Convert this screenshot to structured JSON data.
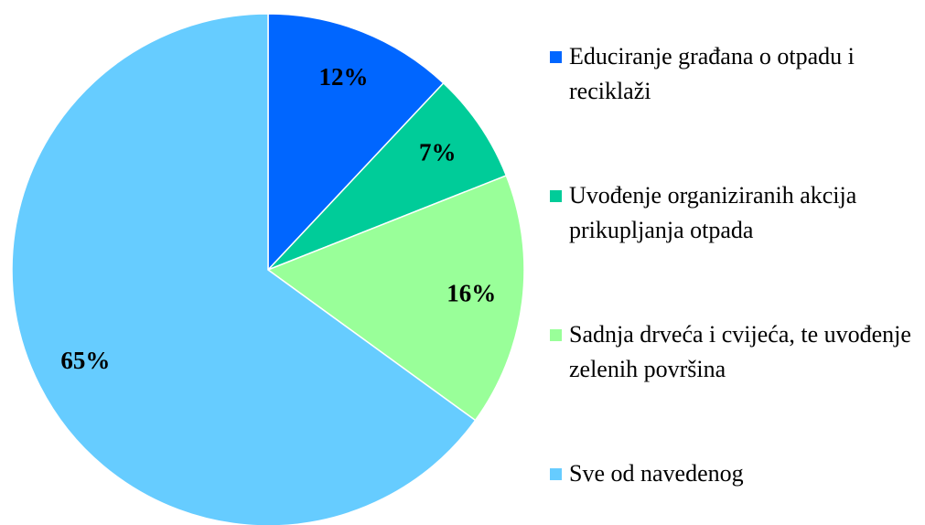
{
  "chart_data": {
    "type": "pie",
    "categories": [
      "Educiranje građana o otpadu i reciklaži",
      "Uvođenje organiziranih akcija prikupljanja otpada",
      "Sadnja drveća i cvijeća, te uvođenje zelenih površina",
      "Sve od navedenog"
    ],
    "values": [
      12,
      7,
      16,
      65
    ],
    "value_labels": [
      "12%",
      "7%",
      "16%",
      "65%"
    ],
    "colors": [
      "#0066ff",
      "#00cc99",
      "#99ff99",
      "#66ccff"
    ],
    "legend": "right"
  }
}
